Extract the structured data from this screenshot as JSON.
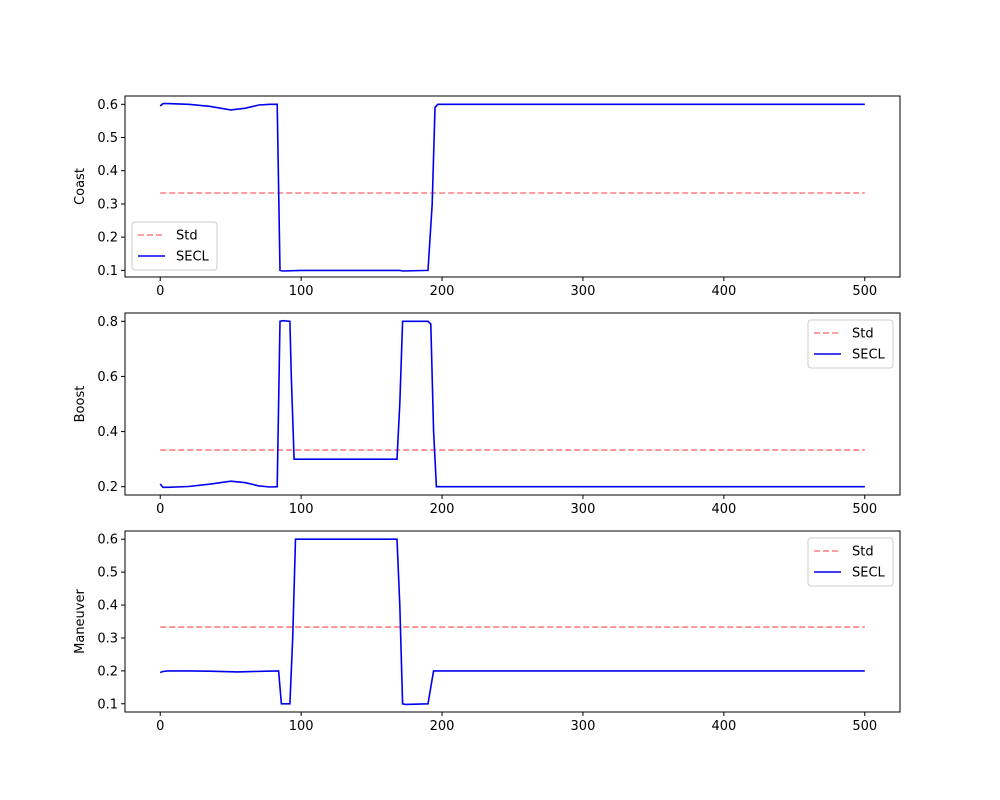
{
  "chart_data": [
    {
      "type": "line",
      "ylabel": "Coast",
      "xlim": [
        -25,
        525
      ],
      "ylim": [
        0.08,
        0.625
      ],
      "xticks": [
        0,
        100,
        200,
        300,
        400,
        500
      ],
      "yticks": [
        0.1,
        0.2,
        0.3,
        0.4,
        0.5,
        0.6
      ],
      "ytick_labels": [
        "0.1",
        "0.2",
        "0.3",
        "0.4",
        "0.5",
        "0.6"
      ],
      "legend_loc": "lower-left",
      "colors": {
        "std": "#ff7f7f",
        "secl": "#0000ee"
      },
      "series": [
        {
          "name": "Std",
          "style": "dashed",
          "x": [
            0,
            500
          ],
          "y": [
            0.333,
            0.333
          ]
        },
        {
          "name": "SECL",
          "style": "solid",
          "x": [
            0,
            2,
            5,
            20,
            35,
            50,
            60,
            70,
            78,
            83,
            85,
            87,
            100,
            150,
            170,
            172,
            190,
            193,
            195,
            197,
            200,
            500
          ],
          "y": [
            0.595,
            0.602,
            0.602,
            0.6,
            0.594,
            0.583,
            0.588,
            0.598,
            0.6,
            0.6,
            0.1,
            0.098,
            0.1,
            0.1,
            0.1,
            0.098,
            0.1,
            0.3,
            0.59,
            0.6,
            0.6,
            0.6
          ]
        }
      ]
    },
    {
      "type": "line",
      "ylabel": "Boost",
      "xlim": [
        -25,
        525
      ],
      "ylim": [
        0.17,
        0.83
      ],
      "xticks": [
        0,
        100,
        200,
        300,
        400,
        500
      ],
      "yticks": [
        0.2,
        0.4,
        0.6,
        0.8
      ],
      "ytick_labels": [
        "0.2",
        "0.4",
        "0.6",
        "0.8"
      ],
      "legend_loc": "upper-right",
      "colors": {
        "std": "#ff7f7f",
        "secl": "#0000ee"
      },
      "series": [
        {
          "name": "Std",
          "style": "dashed",
          "x": [
            0,
            500
          ],
          "y": [
            0.333,
            0.333
          ]
        },
        {
          "name": "SECL",
          "style": "solid",
          "x": [
            0,
            2,
            5,
            20,
            35,
            50,
            60,
            70,
            78,
            83,
            85,
            87,
            92,
            93,
            95,
            100,
            168,
            170,
            172,
            190,
            192,
            194,
            196,
            200,
            500
          ],
          "y": [
            0.21,
            0.198,
            0.198,
            0.201,
            0.209,
            0.22,
            0.215,
            0.203,
            0.199,
            0.2,
            0.8,
            0.802,
            0.8,
            0.6,
            0.3,
            0.3,
            0.3,
            0.5,
            0.8,
            0.8,
            0.79,
            0.4,
            0.2,
            0.2,
            0.2
          ]
        }
      ]
    },
    {
      "type": "line",
      "ylabel": "Maneuver",
      "xlim": [
        -25,
        525
      ],
      "ylim": [
        0.075,
        0.625
      ],
      "xticks": [
        0,
        100,
        200,
        300,
        400,
        500
      ],
      "yticks": [
        0.1,
        0.2,
        0.3,
        0.4,
        0.5,
        0.6
      ],
      "ytick_labels": [
        "0.1",
        "0.2",
        "0.3",
        "0.4",
        "0.5",
        "0.6"
      ],
      "legend_loc": "upper-right",
      "colors": {
        "std": "#ff7f7f",
        "secl": "#0000ee"
      },
      "series": [
        {
          "name": "Std",
          "style": "dashed",
          "x": [
            0,
            500
          ],
          "y": [
            0.333,
            0.333
          ]
        },
        {
          "name": "SECL",
          "style": "solid",
          "x": [
            0,
            2,
            5,
            20,
            35,
            55,
            75,
            84,
            86,
            92,
            94,
            96,
            98,
            100,
            168,
            170,
            172,
            174,
            190,
            192,
            194,
            196,
            200,
            500
          ],
          "y": [
            0.195,
            0.198,
            0.2,
            0.2,
            0.199,
            0.197,
            0.199,
            0.2,
            0.1,
            0.1,
            0.3,
            0.6,
            0.6,
            0.6,
            0.6,
            0.4,
            0.1,
            0.098,
            0.1,
            0.15,
            0.2,
            0.2,
            0.2,
            0.2
          ]
        }
      ]
    }
  ]
}
